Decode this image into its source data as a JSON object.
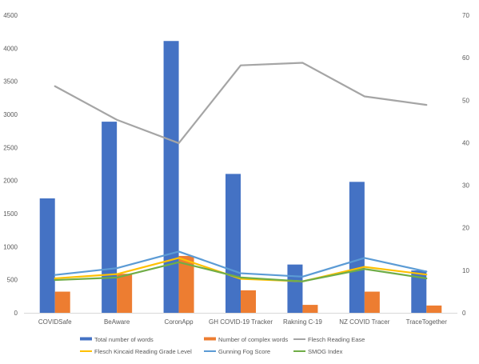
{
  "chart_data": {
    "type": "bar",
    "title": "",
    "categories": [
      "COVIDSafe",
      "BeAware",
      "CoronApp",
      "GH COVID-19 Tracker",
      "Rakning C-19",
      "NZ COVID Tracer",
      "TraceTogether"
    ],
    "y_left": {
      "min": 0,
      "max": 4500,
      "step": 500,
      "ticks": [
        "0",
        "500",
        "1000",
        "1500",
        "2000",
        "2500",
        "3000",
        "3500",
        "4000",
        "4500"
      ]
    },
    "y_right": {
      "min": 0,
      "max": 70,
      "step": 10,
      "ticks": [
        "0",
        "10",
        "20",
        "30",
        "40",
        "50",
        "60",
        "70"
      ]
    },
    "grid": false,
    "legend_position": "bottom",
    "bar_series": [
      {
        "name": "Total number of words",
        "color": "#4472C4",
        "values": [
          1730,
          2890,
          4110,
          2100,
          730,
          1980,
          640
        ]
      },
      {
        "name": "Number of complex words",
        "color": "#ED7D31",
        "values": [
          320,
          590,
          860,
          340,
          120,
          320,
          110
        ]
      }
    ],
    "line_series": [
      {
        "name": "Flesch Reading Ease",
        "color": "#A5A5A5",
        "axis": "right",
        "values": [
          53.3,
          45.4,
          39.9,
          58.2,
          58.8,
          50.9,
          48.9
        ]
      },
      {
        "name": "Flesch Kincaid Reading Grade Level",
        "color": "#FFC000",
        "axis": "right",
        "values": [
          8.1,
          9.1,
          12.9,
          8.0,
          7.4,
          10.8,
          9.0
        ]
      },
      {
        "name": "Gunning Fog Score",
        "color": "#5B9BD5",
        "axis": "right",
        "values": [
          8.9,
          10.5,
          14.4,
          9.3,
          8.5,
          12.9,
          9.7
        ]
      },
      {
        "name": "SMOG Index",
        "color": "#70AD47",
        "axis": "right",
        "values": [
          7.7,
          8.3,
          11.9,
          8.3,
          7.4,
          10.3,
          8.1
        ]
      }
    ]
  }
}
